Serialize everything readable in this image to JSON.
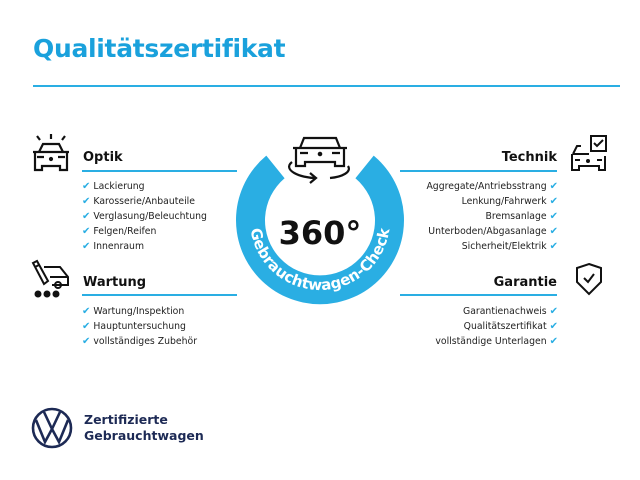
{
  "title": "Qualitätszertifikat",
  "colors": {
    "accent": "#2aaee3",
    "title": "#1aa1dc",
    "brand_navy": "#1d2a55"
  },
  "center_badge": {
    "value": "360°",
    "arc_text": "Gebrauchtwagen-Check",
    "icon": "car-rotate-icon"
  },
  "sections": {
    "optik": {
      "heading": "Optik",
      "icon": "car-lights-icon",
      "items": [
        "Lackierung",
        "Karosserie/Anbauteile",
        "Verglasung/Beleuchtung",
        "Felgen/Reifen",
        "Innenraum"
      ]
    },
    "wartung": {
      "heading": "Wartung",
      "icon": "maintenance-icon",
      "items": [
        "Wartung/Inspektion",
        "Hauptuntersuchung",
        "vollständiges Zubehör"
      ]
    },
    "technik": {
      "heading": "Technik",
      "icon": "car-checklist-icon",
      "items": [
        "Aggregate/Antriebsstrang",
        "Lenkung/Fahrwerk",
        "Bremsanlage",
        "Unterboden/Abgasanlage",
        "Sicherheit/Elektrik"
      ]
    },
    "garantie": {
      "heading": "Garantie",
      "icon": "shield-check-icon",
      "items": [
        "Garantienachweis",
        "Qualitätszertifikat",
        "vollständige Unterlagen"
      ]
    }
  },
  "check_glyph": "✔",
  "footer": {
    "logo": "VW",
    "line1": "Zertifizierte",
    "line2": "Gebrauchtwagen"
  }
}
